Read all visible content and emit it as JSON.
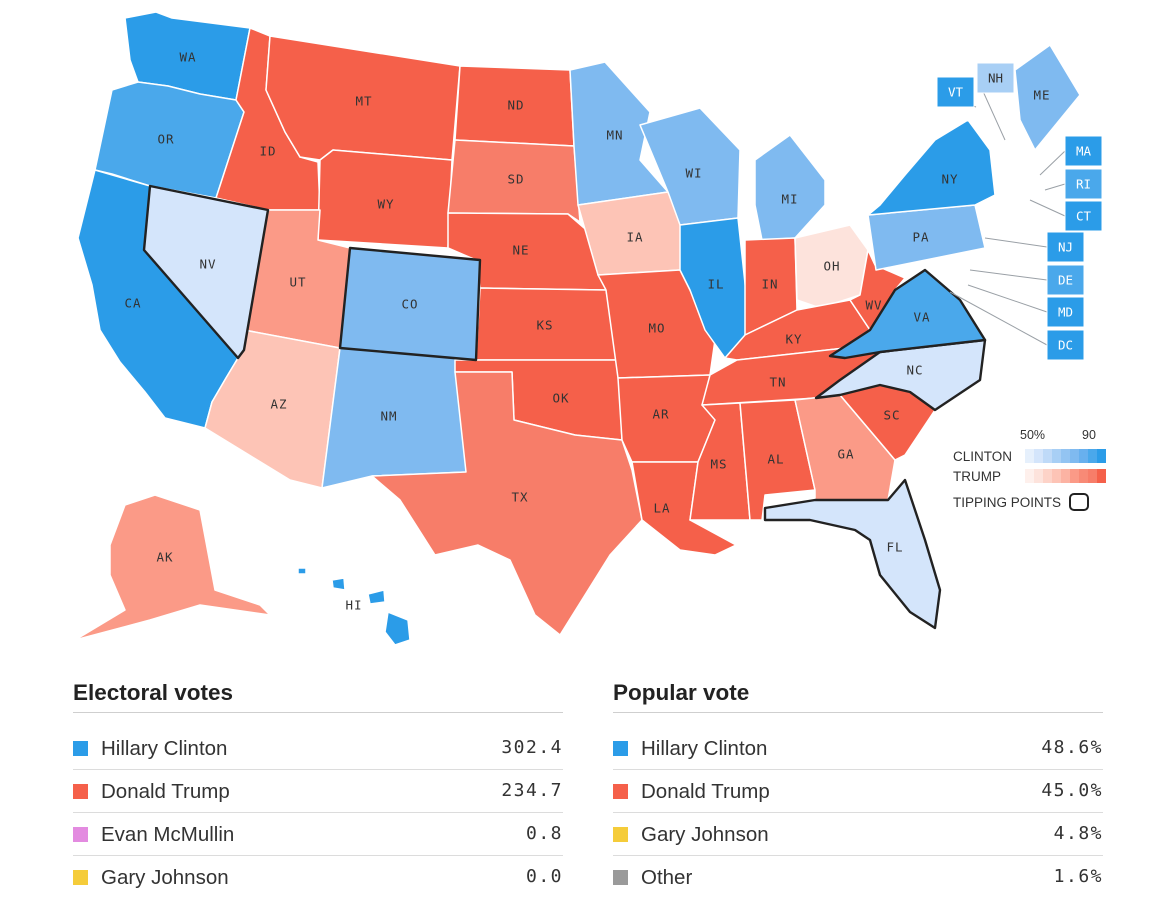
{
  "colors": {
    "clinton_solid": "#2b9ce8",
    "clinton_likely": "#4aa8eb",
    "clinton_lean": "#7fbaf0",
    "clinton_tilt": "#a8cff5",
    "clinton_toss": "#d4e5fb",
    "trump_toss": "#fde3dc",
    "trump_tilt": "#fdc4b6",
    "trump_lean": "#fb9a87",
    "trump_likely": "#f77d69",
    "trump_solid": "#f5604a",
    "mcmullin": "#e38be0",
    "johnson": "#f5cc3a",
    "other": "#9a9a9a"
  },
  "map": {
    "states": [
      {
        "abbr": "WA",
        "color": "clinton_solid",
        "tip": false
      },
      {
        "abbr": "OR",
        "color": "clinton_likely",
        "tip": false
      },
      {
        "abbr": "CA",
        "color": "clinton_solid",
        "tip": false
      },
      {
        "abbr": "NV",
        "color": "clinton_toss",
        "tip": true
      },
      {
        "abbr": "ID",
        "color": "trump_solid",
        "tip": false
      },
      {
        "abbr": "MT",
        "color": "trump_solid",
        "tip": false
      },
      {
        "abbr": "WY",
        "color": "trump_solid",
        "tip": false
      },
      {
        "abbr": "UT",
        "color": "trump_lean",
        "tip": false
      },
      {
        "abbr": "AZ",
        "color": "trump_tilt",
        "tip": false
      },
      {
        "abbr": "CO",
        "color": "clinton_lean",
        "tip": true
      },
      {
        "abbr": "NM",
        "color": "clinton_lean",
        "tip": false
      },
      {
        "abbr": "ND",
        "color": "trump_solid",
        "tip": false
      },
      {
        "abbr": "SD",
        "color": "trump_likely",
        "tip": false
      },
      {
        "abbr": "NE",
        "color": "trump_solid",
        "tip": false
      },
      {
        "abbr": "KS",
        "color": "trump_solid",
        "tip": false
      },
      {
        "abbr": "OK",
        "color": "trump_solid",
        "tip": false
      },
      {
        "abbr": "TX",
        "color": "trump_likely",
        "tip": false
      },
      {
        "abbr": "MN",
        "color": "clinton_lean",
        "tip": false
      },
      {
        "abbr": "IA",
        "color": "trump_tilt",
        "tip": false
      },
      {
        "abbr": "MO",
        "color": "trump_solid",
        "tip": false
      },
      {
        "abbr": "AR",
        "color": "trump_solid",
        "tip": false
      },
      {
        "abbr": "LA",
        "color": "trump_solid",
        "tip": false
      },
      {
        "abbr": "WI",
        "color": "clinton_lean",
        "tip": false
      },
      {
        "abbr": "IL",
        "color": "clinton_solid",
        "tip": false
      },
      {
        "abbr": "MI",
        "color": "clinton_lean",
        "tip": false
      },
      {
        "abbr": "IN",
        "color": "trump_solid",
        "tip": false
      },
      {
        "abbr": "OH",
        "color": "trump_toss",
        "tip": false
      },
      {
        "abbr": "KY",
        "color": "trump_solid",
        "tip": false
      },
      {
        "abbr": "TN",
        "color": "trump_solid",
        "tip": false
      },
      {
        "abbr": "MS",
        "color": "trump_solid",
        "tip": false
      },
      {
        "abbr": "AL",
        "color": "trump_solid",
        "tip": false
      },
      {
        "abbr": "GA",
        "color": "trump_lean",
        "tip": false
      },
      {
        "abbr": "FL",
        "color": "clinton_toss",
        "tip": true
      },
      {
        "abbr": "SC",
        "color": "trump_solid",
        "tip": false
      },
      {
        "abbr": "NC",
        "color": "clinton_toss",
        "tip": true
      },
      {
        "abbr": "VA",
        "color": "clinton_likely",
        "tip": true
      },
      {
        "abbr": "WV",
        "color": "trump_solid",
        "tip": false
      },
      {
        "abbr": "PA",
        "color": "clinton_lean",
        "tip": false
      },
      {
        "abbr": "NY",
        "color": "clinton_solid",
        "tip": false
      },
      {
        "abbr": "ME",
        "color": "clinton_lean",
        "tip": false
      },
      {
        "abbr": "AK",
        "color": "trump_lean",
        "tip": false
      },
      {
        "abbr": "HI",
        "color": "clinton_solid",
        "tip": false
      }
    ],
    "boxed_states": [
      {
        "abbr": "VT",
        "color": "clinton_solid"
      },
      {
        "abbr": "NH",
        "color": "clinton_tilt"
      },
      {
        "abbr": "MA",
        "color": "clinton_solid"
      },
      {
        "abbr": "RI",
        "color": "clinton_likely"
      },
      {
        "abbr": "CT",
        "color": "clinton_solid"
      },
      {
        "abbr": "NJ",
        "color": "clinton_solid"
      },
      {
        "abbr": "DE",
        "color": "clinton_likely"
      },
      {
        "abbr": "MD",
        "color": "clinton_solid"
      },
      {
        "abbr": "DC",
        "color": "clinton_solid"
      }
    ]
  },
  "legend": {
    "scale_low": "50%",
    "scale_high": "90",
    "clinton_label": "CLINTON",
    "trump_label": "TRUMP",
    "tipping_label": "TIPPING POINTS",
    "clinton_ramp": [
      "#e6f0fc",
      "#d4e5fb",
      "#bfdaf8",
      "#a8cff5",
      "#93c4f2",
      "#7fbaf0",
      "#68b0ee",
      "#4aa8eb",
      "#2b9ce8"
    ],
    "trump_ramp": [
      "#fef0ec",
      "#fde3dc",
      "#fdd3c8",
      "#fdc4b6",
      "#fcb3a3",
      "#fb9a87",
      "#f88a76",
      "#f77d69",
      "#f5604a"
    ]
  },
  "electoral": {
    "title": "Electoral votes",
    "rows": [
      {
        "name": "Hillary Clinton",
        "value": "302.4",
        "color": "#2b9ce8"
      },
      {
        "name": "Donald Trump",
        "value": "234.7",
        "color": "#f5604a"
      },
      {
        "name": "Evan McMullin",
        "value": "0.8",
        "color": "#e38be0"
      },
      {
        "name": "Gary Johnson",
        "value": "0.0",
        "color": "#f5cc3a"
      }
    ]
  },
  "popular": {
    "title": "Popular vote",
    "rows": [
      {
        "name": "Hillary Clinton",
        "value": "48.6%",
        "color": "#2b9ce8"
      },
      {
        "name": "Donald Trump",
        "value": "45.0%",
        "color": "#f5604a"
      },
      {
        "name": "Gary Johnson",
        "value": "4.8%",
        "color": "#f5cc3a"
      },
      {
        "name": "Other",
        "value": "1.6%",
        "color": "#9a9a9a"
      }
    ]
  }
}
